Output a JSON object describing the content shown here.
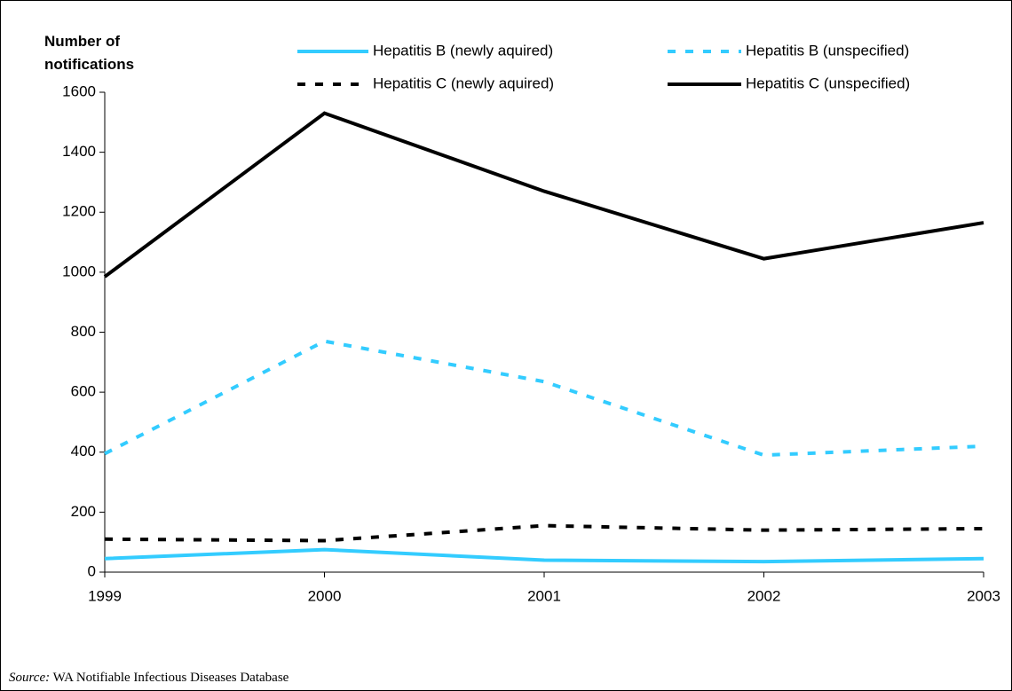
{
  "chart_data": {
    "type": "line",
    "y_label": "Number of notifications",
    "categories": [
      "1999",
      "2000",
      "2001",
      "2002",
      "2003"
    ],
    "series": [
      {
        "name": "Hepatitis B (newly aquired)",
        "color": "#33ccff",
        "line_style": "solid",
        "values": [
          45,
          75,
          40,
          35,
          45
        ]
      },
      {
        "name": "Hepatitis B (unspecified)",
        "color": "#33ccff",
        "line_style": "dashed",
        "values": [
          395,
          770,
          635,
          390,
          420
        ]
      },
      {
        "name": "Hepatitis C (newly aquired)",
        "color": "#000000",
        "line_style": "dashed",
        "values": [
          110,
          105,
          155,
          140,
          145
        ]
      },
      {
        "name": "Hepatitis C (unspecified)",
        "color": "#000000",
        "line_style": "solid",
        "values": [
          985,
          1530,
          1270,
          1045,
          1165
        ]
      }
    ],
    "ylim": [
      0,
      1600
    ],
    "yticks": [
      0,
      200,
      400,
      600,
      800,
      1000,
      1200,
      1400,
      1600
    ],
    "grid": false
  },
  "source": {
    "label": "Source:",
    "text": "WA Notifiable Infectious Diseases Database"
  }
}
